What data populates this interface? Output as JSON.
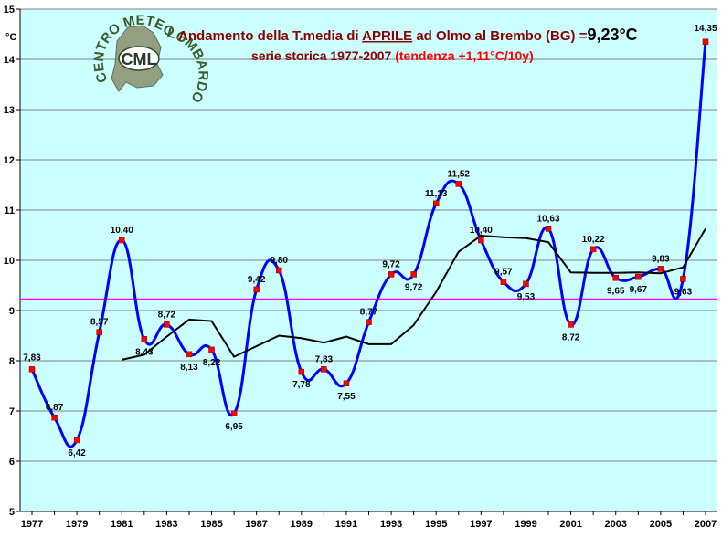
{
  "chart_data": {
    "type": "line",
    "title": {
      "prefix": "Andamento della T.media di ",
      "month": "APRILE",
      "suffix": " ad Olmo al Brembo (BG) =",
      "mean_value": "9,23°C"
    },
    "subtitle": {
      "main": "serie storica 1977-2007 ",
      "trend": "(tendenza +1,11°C/10y)"
    },
    "ylabel": "°C",
    "ylim": [
      5,
      15
    ],
    "yticks": [
      5,
      6,
      7,
      8,
      9,
      10,
      11,
      12,
      13,
      14,
      15
    ],
    "xlim": [
      1977,
      2007
    ],
    "xticks": [
      "1977",
      "1979",
      "1981",
      "1983",
      "1985",
      "1987",
      "1989",
      "1991",
      "1993",
      "1995",
      "1997",
      "1999",
      "2001",
      "2003",
      "2005",
      "2007"
    ],
    "mean_line": 9.23,
    "series": [
      {
        "x": [
          1977,
          1978,
          1979,
          1980,
          1981,
          1982,
          1983,
          1984,
          1985,
          1986,
          1987,
          1988,
          1989,
          1990,
          1991,
          1992,
          1993,
          1994,
          1995,
          1996,
          1997,
          1998,
          1999,
          2000,
          2001,
          2002,
          2003,
          2004,
          2005,
          2006,
          2007
        ],
        "values": [
          7.83,
          6.87,
          6.42,
          8.57,
          10.4,
          8.43,
          8.72,
          8.13,
          8.22,
          6.95,
          9.42,
          9.8,
          7.78,
          7.83,
          7.55,
          8.77,
          9.72,
          9.72,
          11.13,
          11.52,
          10.4,
          9.57,
          9.53,
          10.63,
          8.72,
          10.22,
          9.65,
          9.67,
          9.83,
          9.63,
          14.35
        ],
        "labels": [
          "7,83",
          "6,87",
          "6,42",
          "8,57",
          "10,40",
          "8,43",
          "8,72",
          "8,13",
          "8,22",
          "6,95",
          "9,42",
          "9,80",
          "7,78",
          "7,83",
          "7,55",
          "8,77",
          "9,72",
          "9,72",
          "11,13",
          "11,52",
          "10,40",
          "9,57",
          "9,53",
          "10,63",
          "8,72",
          "10,22",
          "9,65",
          "9,67",
          "9,83",
          "9,63",
          "14,35"
        ],
        "color": "#0000ff"
      },
      {
        "x": [
          1981,
          1982,
          1983,
          1984,
          1985,
          1986,
          1987,
          1988,
          1989,
          1990,
          1991,
          1992,
          1993,
          1994,
          1995,
          1996,
          1997,
          1998,
          1999,
          2000,
          2001,
          2002,
          2003,
          2004,
          2005,
          2006,
          2007
        ],
        "values": [
          8.02,
          8.12,
          8.48,
          8.82,
          8.79,
          8.08,
          8.29,
          8.5,
          8.45,
          8.36,
          8.48,
          8.33,
          8.33,
          8.71,
          9.37,
          10.17,
          10.49,
          10.46,
          10.44,
          10.36,
          9.76,
          9.75,
          9.75,
          9.76,
          9.74,
          9.86,
          10.63
        ],
        "color": "#000000"
      }
    ],
    "colors": {
      "plot_background": "#ccffff",
      "mean_line": "#ff00ff",
      "point_marker": "#ff0000",
      "title": "#8B0000",
      "trend_text": "#ff0000"
    },
    "logo": {
      "top_text": "CENTRO METEO",
      "side_text": "LOMBARDO",
      "badge": "CML"
    }
  }
}
